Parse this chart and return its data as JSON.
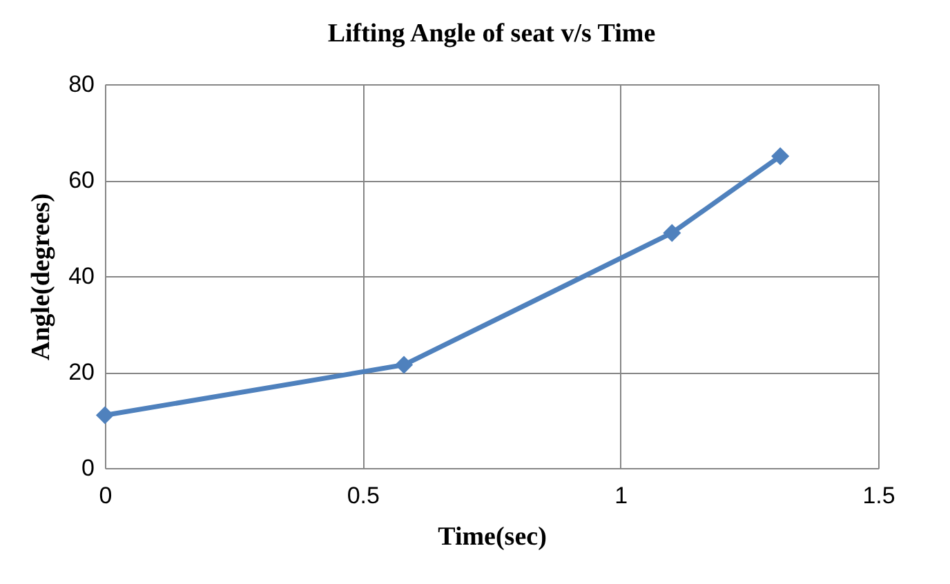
{
  "chart_data": {
    "type": "line",
    "title": "Lifting Angle of seat v/s Time",
    "xlabel": "Time(sec)",
    "ylabel": "Angle(degrees)",
    "x": [
      0,
      0.58,
      1.1,
      1.31
    ],
    "series": [
      {
        "color": "#4f81bd",
        "values": [
          11,
          21.5,
          49,
          65
        ]
      }
    ],
    "xlim": [
      0,
      1.5
    ],
    "xticks": [
      0,
      0.5,
      1,
      1.5
    ],
    "ylim": [
      0,
      80
    ],
    "yticks": [
      0,
      20,
      40,
      60,
      80
    ],
    "grid": true,
    "legend": false,
    "marker": "diamond",
    "line_style": "solid"
  }
}
